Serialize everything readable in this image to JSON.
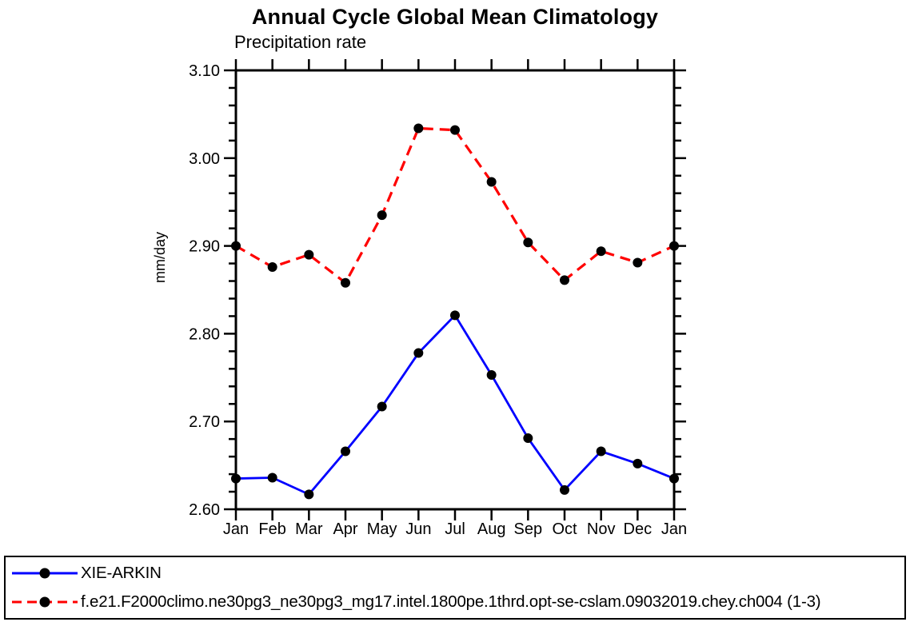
{
  "chart_data": {
    "type": "line",
    "title": "Annual Cycle Global Mean Climatology",
    "subtitle": "Precipitation rate",
    "ylabel": "mm/day",
    "xlabel": "",
    "categories": [
      "Jan",
      "Feb",
      "Mar",
      "Apr",
      "May",
      "Jun",
      "Jul",
      "Aug",
      "Sep",
      "Oct",
      "Nov",
      "Dec",
      "Jan"
    ],
    "ylim": [
      2.6,
      3.1
    ],
    "y_major_step": 0.1,
    "y_minor_step": 0.02,
    "y_tick_labels": [
      "2.60",
      "2.70",
      "2.80",
      "2.90",
      "3.00",
      "3.10"
    ],
    "grid": false,
    "legend_position": "bottom-box",
    "series": [
      {
        "name": "XIE-ARKIN",
        "color": "#0000ff",
        "style": "solid",
        "marker": "filled-circle",
        "marker_color": "#000000",
        "values": [
          2.635,
          2.636,
          2.617,
          2.666,
          2.717,
          2.778,
          2.821,
          2.753,
          2.681,
          2.622,
          2.666,
          2.652,
          2.635
        ]
      },
      {
        "name": "f.e21.F2000climo.ne30pg3_ne30pg3_mg17.intel.1800pe.1thrd.opt-se-cslam.09032019.chey.ch004 (1-3)",
        "color": "#ff0000",
        "style": "dashed",
        "marker": "filled-circle",
        "marker_color": "#000000",
        "values": [
          2.9,
          2.876,
          2.89,
          2.858,
          2.935,
          3.034,
          3.032,
          2.973,
          2.904,
          2.861,
          2.894,
          2.881,
          2.9
        ]
      }
    ]
  }
}
